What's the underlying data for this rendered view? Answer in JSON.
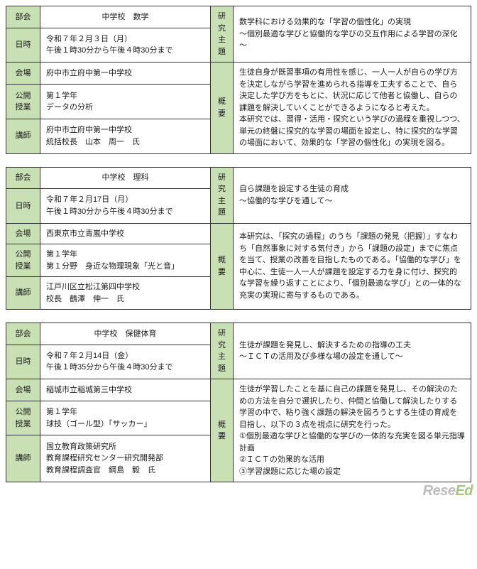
{
  "sessions": [
    {
      "labels": {
        "bukai": "部会",
        "nichiji": "日時",
        "kaijo": "会場",
        "koukai": "公開\n授業",
        "koushi": "講師",
        "shudai": "研究\n主題",
        "gaiyo": "概要"
      },
      "subject": "中学校　数学",
      "datetime": "令和７年２月３日（月）\n午後１時30分から午後４時30分まで",
      "venue": "府中市立府中第一中学校",
      "class": "第１学年\nデータの分析",
      "lecturer": "府中市立府中第一中学校\n統括校長　山本　周一　氏",
      "theme": "数学科における効果的な「学習の個性化」の実現\n～個別最適な学びと協働的な学びの交互作用による学習の深化～",
      "summary": "生徒自身が既習事項の有用性を感じ、一人一人が自らの学び方を決定しながら学習を進められる指導を工夫することで、自ら決定した学び方をもとに、状況に応じて他者と協働し、自らの課題を解決していくことができるようになると考えた。\n本研究では、習得・活用・探究という学びの過程を重視しつつ、単元の終盤に探究的な学習の場面を設定し、特に探究的な学習の場面において、効果的な「学習の個性化」の実現を図る。"
    },
    {
      "labels": {
        "bukai": "部会",
        "nichiji": "日時",
        "kaijo": "会場",
        "koukai": "公開\n授業",
        "koushi": "講師",
        "shudai": "研究\n主題",
        "gaiyo": "概要"
      },
      "subject": "中学校　理科",
      "datetime": "令和７年２月17日（月）\n午後１時30分から午後４時30分まで",
      "venue": "西東京市立青嵐中学校",
      "class": "第１学年\n第１分野　身近な物理現象「光と音」",
      "lecturer": "江戸川区立松江第四中学校\n校長　鶴澤　伸一　氏",
      "theme": "自ら課題を設定する生徒の育成\n～協働的な学びを通して～",
      "summary": "本研究は、「探究の過程」のうち「課題の発見（把握）」すなわち「自然事象に対する気付き」から「課題の設定」までに焦点を当て、授業の改善を目指したものである。「協働的な学び」を中心に、生徒一人一人が課題を設定する力を身に付け、探究的な学習を繰り返すことにより、「個別最適な学び」との一体的な充実の実現に寄与するものである。"
    },
    {
      "labels": {
        "bukai": "部会",
        "nichiji": "日時",
        "kaijo": "会場",
        "koukai": "公開\n授業",
        "koushi": "講師",
        "shudai": "研究\n主題",
        "gaiyo": "概要"
      },
      "subject": "中学校　保健体育",
      "datetime": "令和７年２月14日（金）\n午後１時35分から午後４時30分まで",
      "venue": "稲城市立稲城第三中学校",
      "class": "第１学年\n球技（ゴール型）「サッカー」",
      "lecturer": "国立教育政策研究所\n教育課程研究センター研究開発部\n教育課程調査官　綱島　毅　氏",
      "theme": "生徒が課題を発見し、解決するための指導の工夫\n～ＩＣＴの活用及び多様な場の設定を通して～",
      "summary": "生徒が学習したことを基に自己の課題を発見し、その解決のための方法を自分で選択したり、仲間と協働して解決したりする学習の中で、粘り強く課題の解決を図ろうとする生徒の育成を目指し、以下の３点を視点に研究を行った。\n①個別最適な学びと協働的な学びの一体的な充実を図る単元指導計画\n②ＩＣＴの効果的な活用\n③学習課題に応じた場の設定"
    }
  ],
  "watermark": {
    "left": "Rese",
    "right": "Ed"
  }
}
